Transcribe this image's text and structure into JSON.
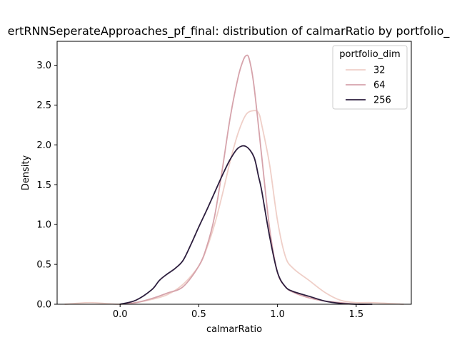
{
  "chart_data": {
    "type": "line",
    "title": "ertRNNSeperateApproaches_pf_final: distribution of calmarRatio by portfolio_",
    "xlabel": "calmarRatio",
    "ylabel": "Density",
    "xlim": [
      -0.4,
      1.85
    ],
    "ylim": [
      0.0,
      3.3
    ],
    "xticks": [
      0.0,
      0.5,
      1.0,
      1.5
    ],
    "xtick_labels": [
      "0.0",
      "0.5",
      "1.0",
      "1.5"
    ],
    "yticks": [
      0.0,
      0.5,
      1.0,
      1.5,
      2.0,
      2.5,
      3.0
    ],
    "ytick_labels": [
      "0.0",
      "0.5",
      "1.0",
      "1.5",
      "2.0",
      "2.5",
      "3.0"
    ],
    "grid": false,
    "legend": {
      "title": "portfolio_dim",
      "placement": "top-right"
    },
    "series": [
      {
        "name": "32",
        "color": "#efcfc8",
        "x": [
          -0.35,
          -0.2,
          -0.1,
          0.0,
          0.1,
          0.2,
          0.3,
          0.4,
          0.5,
          0.55,
          0.6,
          0.65,
          0.7,
          0.75,
          0.8,
          0.85,
          0.88,
          0.9,
          0.95,
          1.0,
          1.05,
          1.1,
          1.2,
          1.3,
          1.4,
          1.5,
          1.6,
          1.8
        ],
        "y": [
          0.0,
          0.02,
          0.01,
          0.0,
          0.02,
          0.06,
          0.12,
          0.25,
          0.48,
          0.7,
          1.0,
          1.38,
          1.8,
          2.15,
          2.38,
          2.43,
          2.4,
          2.25,
          1.75,
          1.05,
          0.6,
          0.45,
          0.3,
          0.15,
          0.05,
          0.02,
          0.02,
          0.0
        ]
      },
      {
        "name": "64",
        "color": "#d6a3ab",
        "x": [
          0.0,
          0.1,
          0.2,
          0.3,
          0.4,
          0.5,
          0.55,
          0.6,
          0.65,
          0.7,
          0.75,
          0.78,
          0.8,
          0.82,
          0.85,
          0.9,
          0.95,
          1.0,
          1.05,
          1.1,
          1.2,
          1.3,
          1.4,
          1.5
        ],
        "y": [
          0.0,
          0.02,
          0.07,
          0.14,
          0.22,
          0.48,
          0.72,
          1.1,
          1.7,
          2.35,
          2.85,
          3.05,
          3.12,
          3.08,
          2.75,
          1.85,
          0.95,
          0.4,
          0.22,
          0.15,
          0.08,
          0.04,
          0.02,
          0.0
        ]
      },
      {
        "name": "256",
        "color": "#2d1e3e",
        "x": [
          0.0,
          0.1,
          0.2,
          0.25,
          0.3,
          0.35,
          0.4,
          0.45,
          0.5,
          0.55,
          0.6,
          0.65,
          0.7,
          0.75,
          0.8,
          0.85,
          0.88,
          0.9,
          0.95,
          1.0,
          1.05,
          1.1,
          1.2,
          1.3,
          1.4,
          1.5,
          1.6
        ],
        "y": [
          0.0,
          0.05,
          0.18,
          0.3,
          0.38,
          0.45,
          0.55,
          0.75,
          0.97,
          1.18,
          1.4,
          1.62,
          1.82,
          1.96,
          1.98,
          1.85,
          1.6,
          1.42,
          0.85,
          0.4,
          0.22,
          0.16,
          0.1,
          0.04,
          0.01,
          0.0,
          0.0
        ]
      }
    ]
  }
}
